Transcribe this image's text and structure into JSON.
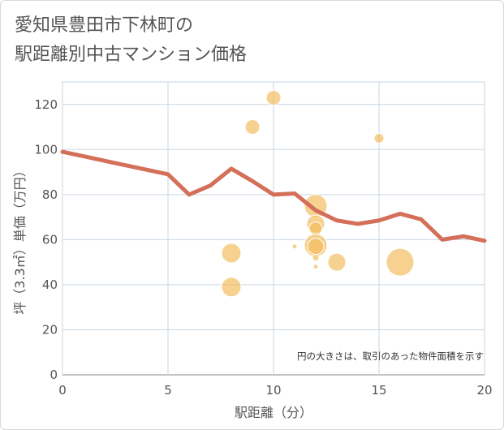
{
  "title_line1": "愛知県豊田市下林町の",
  "title_line2": "駅距離別中古マンション価格",
  "chart_data": {
    "type": "scatter",
    "title": "愛知県豊田市下林町の駅距離別中古マンション価格",
    "xlabel": "駅距離（分）",
    "ylabel": "坪（3.3㎡）単価（万円）",
    "xlim": [
      0,
      20
    ],
    "ylim": [
      0,
      130
    ],
    "x_ticks": [
      0,
      5,
      10,
      15,
      20
    ],
    "y_ticks": [
      0,
      20,
      40,
      60,
      80,
      100,
      120
    ],
    "grid": true,
    "note": "円の大きさは、取引のあった物件面積を示す",
    "line_color": "#d4705a",
    "bubble_color": "#f2bd60",
    "line": {
      "x": [
        0,
        5,
        6,
        7,
        8,
        9,
        10,
        11,
        12,
        13,
        14,
        15,
        16,
        17,
        18,
        19,
        20
      ],
      "y": [
        99,
        89,
        80,
        84,
        91.5,
        86,
        80,
        80.5,
        73,
        68.5,
        67,
        68.5,
        71.5,
        69,
        60,
        61.5,
        59.5
      ]
    },
    "bubbles": [
      {
        "x": 8,
        "y": 54,
        "size": 12
      },
      {
        "x": 8,
        "y": 39,
        "size": 12
      },
      {
        "x": 9,
        "y": 110,
        "size": 9
      },
      {
        "x": 10,
        "y": 123,
        "size": 9
      },
      {
        "x": 11,
        "y": 57,
        "size": 3
      },
      {
        "x": 12,
        "y": 75,
        "size": 14
      },
      {
        "x": 12,
        "y": 67,
        "size": 11
      },
      {
        "x": 12,
        "y": 65,
        "size": 8
      },
      {
        "x": 12,
        "y": 57.5,
        "size": 14
      },
      {
        "x": 12,
        "y": 57,
        "size": 10
      },
      {
        "x": 12,
        "y": 52,
        "size": 4
      },
      {
        "x": 12,
        "y": 48,
        "size": 3
      },
      {
        "x": 13,
        "y": 50,
        "size": 11
      },
      {
        "x": 15,
        "y": 105,
        "size": 6
      },
      {
        "x": 16,
        "y": 50,
        "size": 17
      }
    ]
  }
}
